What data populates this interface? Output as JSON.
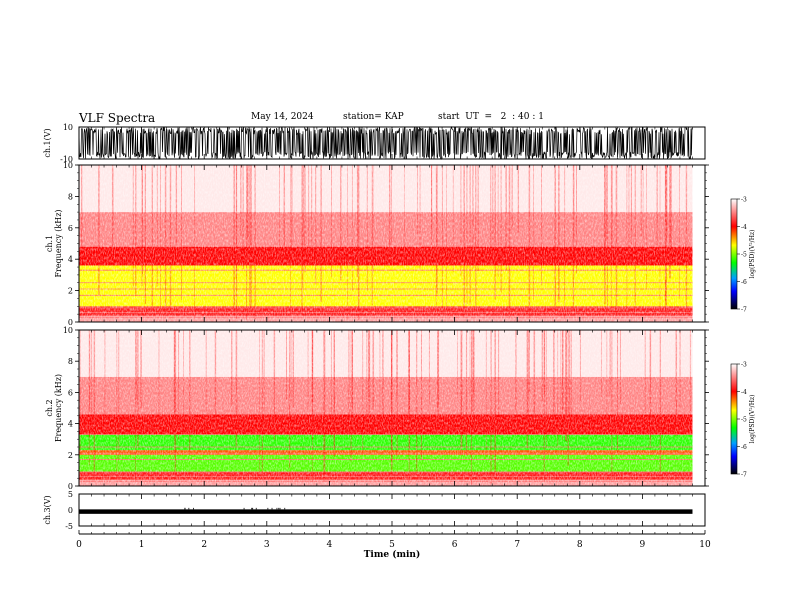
{
  "header": {
    "title": "VLF Spectra",
    "date": "May 14, 2024",
    "station": "station= KAP",
    "start": "start  UT  =   2  : 40 : 1"
  },
  "chart_data": [
    {
      "type": "line",
      "panel": "ch1-waveform",
      "ylabel": "ch.1(V)",
      "ylim": [
        -10,
        10
      ],
      "yticks": [
        "10",
        "-10"
      ],
      "xlim": [
        0,
        10
      ],
      "trace_extent_min": 9.8,
      "description_of_trace": "dense saturated waveform filling the panel"
    },
    {
      "type": "heatmap",
      "panel": "ch1-spectrogram",
      "ylabel": "ch.1",
      "ylabel2": "Frequency  (kHz)",
      "ylim": [
        0,
        10
      ],
      "yticks": [
        "0",
        "2",
        "4",
        "6",
        "8",
        "10"
      ],
      "xlim": [
        0,
        10
      ],
      "data_extent_min": 9.8,
      "colorbar": {
        "label": "log(PSD)(V²/Hz)",
        "range": [
          -7,
          -3
        ],
        "ticks": [
          "-3",
          "-4",
          "-5",
          "-6",
          "-7"
        ]
      },
      "bands": [
        {
          "from_khz": 0,
          "to_khz": 0.4,
          "level": -3.4
        },
        {
          "from_khz": 0.4,
          "to_khz": 1.0,
          "level": -3.9
        },
        {
          "from_khz": 1.0,
          "to_khz": 3.6,
          "level": -4.6
        },
        {
          "from_khz": 3.6,
          "to_khz": 4.8,
          "level": -4.0
        },
        {
          "from_khz": 4.8,
          "to_khz": 7.0,
          "level": -3.5
        },
        {
          "from_khz": 7.0,
          "to_khz": 10.0,
          "level": -3.1
        }
      ]
    },
    {
      "type": "heatmap",
      "panel": "ch2-spectrogram",
      "ylabel": "ch.2",
      "ylabel2": "Frequency  (kHz)",
      "ylim": [
        0,
        10
      ],
      "yticks": [
        "0",
        "2",
        "4",
        "6",
        "8",
        "10"
      ],
      "xlim": [
        0,
        10
      ],
      "data_extent_min": 9.8,
      "colorbar": {
        "label": "log(PSD)(V²/Hz)",
        "range": [
          -7,
          -3
        ],
        "ticks": [
          "-3",
          "-4",
          "-5",
          "-6",
          "-7"
        ]
      },
      "bands": [
        {
          "from_khz": 0,
          "to_khz": 0.4,
          "level": -3.4
        },
        {
          "from_khz": 0.4,
          "to_khz": 0.9,
          "level": -3.9
        },
        {
          "from_khz": 0.9,
          "to_khz": 2.0,
          "level": -5.0
        },
        {
          "from_khz": 2.0,
          "to_khz": 2.3,
          "level": -4.2
        },
        {
          "from_khz": 2.3,
          "to_khz": 3.3,
          "level": -5.1
        },
        {
          "from_khz": 3.3,
          "to_khz": 4.6,
          "level": -4.0
        },
        {
          "from_khz": 4.6,
          "to_khz": 7.0,
          "level": -3.5
        },
        {
          "from_khz": 7.0,
          "to_khz": 10.0,
          "level": -3.1
        }
      ]
    },
    {
      "type": "line",
      "panel": "ch3-waveform",
      "ylabel": "ch.3(V)",
      "ylim": [
        -5,
        5
      ],
      "yticks": [
        "5",
        "0",
        "-5"
      ],
      "xlim": [
        0,
        10
      ],
      "trace_level_v": [
        -1.2,
        0.2
      ],
      "trace_extent_min": 9.8
    }
  ],
  "x_axis": {
    "label": "Time  (min)",
    "ticks": [
      "0",
      "1",
      "2",
      "3",
      "4",
      "5",
      "6",
      "7",
      "8",
      "9",
      "10"
    ]
  },
  "colors": {
    "colormap": [
      "#ffffff",
      "#ff0000",
      "#ffff00",
      "#00ff00",
      "#0000ff",
      "#000000"
    ]
  }
}
